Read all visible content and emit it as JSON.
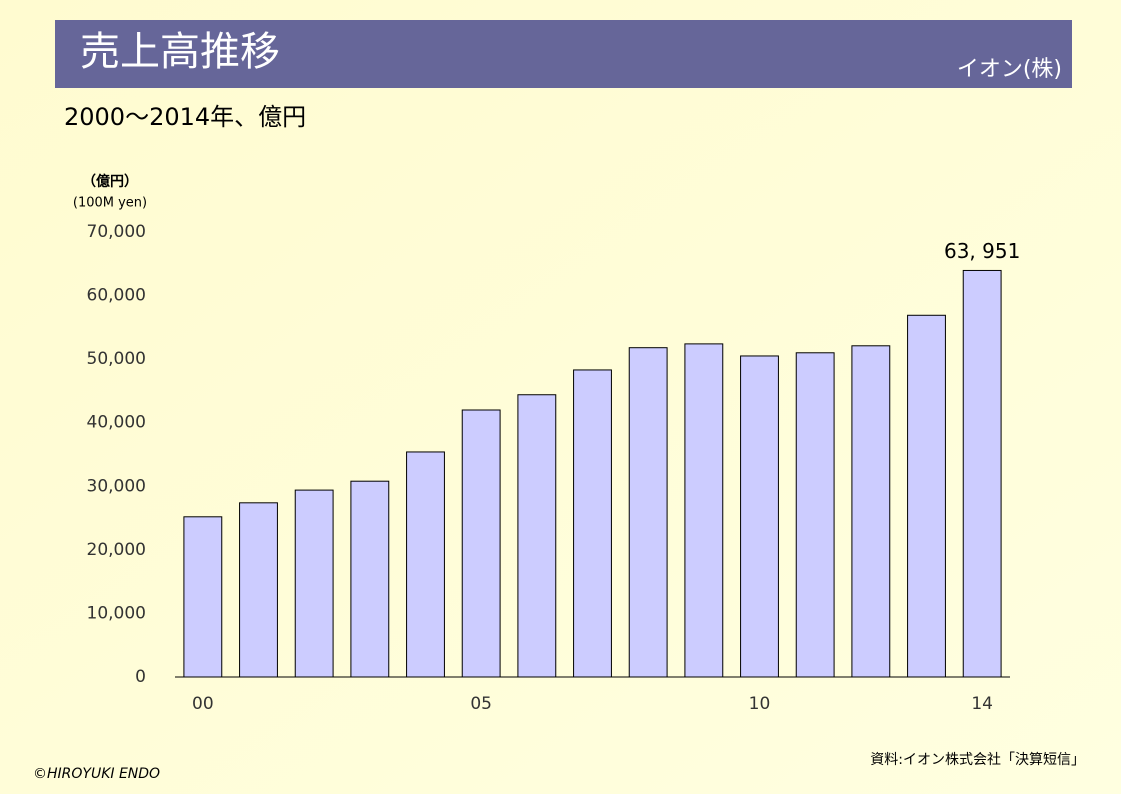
{
  "chart_data": {
    "type": "bar",
    "title": "売上高推移",
    "company": "イオン(株)",
    "subtitle": "2000～2014年、億円",
    "y_unit": "（億円）",
    "y_unit_en": "(100M yen)",
    "source": "資料:イオン株式会社「決算短信」",
    "copyright": "©HIROYUKI ENDO",
    "categories": [
      "00",
      null,
      null,
      null,
      null,
      "05",
      null,
      null,
      null,
      null,
      "10",
      null,
      null,
      null,
      "14"
    ],
    "values": [
      25200,
      27400,
      29400,
      30800,
      35400,
      42000,
      44400,
      48300,
      51800,
      52400,
      50500,
      51000,
      52100,
      56900,
      63951
    ],
    "value_labels": [
      null,
      null,
      null,
      null,
      null,
      null,
      null,
      null,
      null,
      null,
      null,
      null,
      null,
      null,
      "63, 951"
    ],
    "color": "#ccccff",
    "ylim": [
      0,
      70000
    ],
    "yticks": [
      0,
      {
        "value": 10000,
        "label": "10,000"
      },
      {
        "value": 20000,
        "label": "20,000"
      },
      {
        "value": 30000,
        "label": "30,000"
      },
      {
        "value": 40000,
        "label": "40,000"
      },
      {
        "value": 50000,
        "label": "50,000"
      },
      {
        "value": 60000,
        "label": "60,000"
      },
      {
        "value": 70000,
        "label": "70,000"
      }
    ],
    "grid": false
  }
}
